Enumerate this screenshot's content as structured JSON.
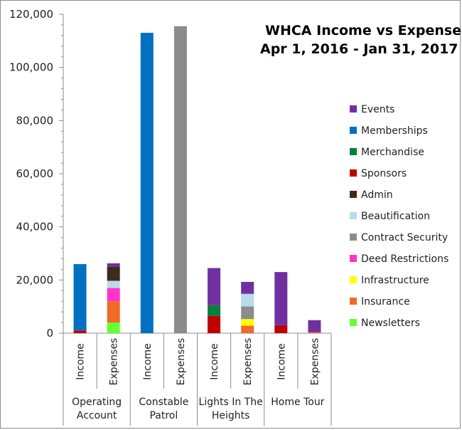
{
  "chart_data": {
    "type": "bar",
    "stacked": true,
    "title": [
      "WHCA Income vs Expenses",
      "Apr 1, 2016 - Jan 31, 2017"
    ],
    "xlabel": "",
    "ylabel": "",
    "ylim": [
      0,
      120000
    ],
    "yticks": [
      0,
      20000,
      40000,
      60000,
      80000,
      100000,
      120000
    ],
    "ytick_labels": [
      "0",
      "20,000",
      "40,000",
      "60,000",
      "80,000",
      "100,000",
      "120,000"
    ],
    "grid": false,
    "legend_position": "right",
    "groups": [
      {
        "label": [
          "Operating",
          "Account"
        ],
        "bars": [
          "Income",
          "Expenses"
        ]
      },
      {
        "label": [
          "Constable",
          "Patrol"
        ],
        "bars": [
          "Income",
          "Expenses"
        ]
      },
      {
        "label": [
          "Lights In The",
          "Heights"
        ],
        "bars": [
          "Income",
          "Expenses"
        ]
      },
      {
        "label": [
          "Home Tour"
        ],
        "bars": [
          "Income",
          "Expenses"
        ]
      }
    ],
    "categories": [
      "Operating Account Income",
      "Operating Account Expenses",
      "Constable Patrol Income",
      "Constable Patrol Expenses",
      "Lights In The Heights Income",
      "Lights In The Heights Expenses",
      "Home Tour Income",
      "Home Tour Expenses"
    ],
    "stack_order": [
      "Newsletters",
      "Insurance",
      "Infrastructure",
      "Deed Restrictions",
      "Contract Security",
      "Beautification",
      "Admin",
      "Sponsors",
      "Merchandise",
      "Memberships",
      "Events"
    ],
    "series": [
      {
        "name": "Events",
        "color": "#7030a0",
        "values": [
          0,
          1300,
          0,
          0,
          14000,
          4500,
          20000,
          4500
        ]
      },
      {
        "name": "Memberships",
        "color": "#0070c0",
        "values": [
          25000,
          0,
          113000,
          0,
          0,
          0,
          0,
          0
        ]
      },
      {
        "name": "Merchandise",
        "color": "#00803c",
        "values": [
          0,
          0,
          0,
          0,
          4000,
          0,
          0,
          0
        ]
      },
      {
        "name": "Sponsors",
        "color": "#c00000",
        "values": [
          1000,
          0,
          0,
          0,
          6500,
          0,
          3000,
          0
        ]
      },
      {
        "name": "Admin",
        "color": "#3d2b1f",
        "values": [
          0,
          5300,
          0,
          0,
          0,
          0,
          0,
          0
        ]
      },
      {
        "name": "Beautification",
        "color": "#b7dde8",
        "values": [
          0,
          2700,
          0,
          0,
          0,
          4700,
          0,
          0
        ]
      },
      {
        "name": "Contract Security",
        "color": "#8c8c8c",
        "values": [
          0,
          0,
          0,
          115500,
          0,
          4800,
          0,
          0
        ]
      },
      {
        "name": "Deed Restrictions",
        "color": "#ff33cc",
        "values": [
          0,
          5000,
          0,
          0,
          0,
          0,
          0,
          0
        ]
      },
      {
        "name": "Infrastructure",
        "color": "#ffff00",
        "values": [
          0,
          0,
          0,
          0,
          0,
          2500,
          0,
          0
        ]
      },
      {
        "name": "Insurance",
        "color": "#f06a28",
        "values": [
          0,
          8000,
          0,
          0,
          0,
          2800,
          0,
          400
        ]
      },
      {
        "name": "Newsletters",
        "color": "#66ff33",
        "values": [
          0,
          4000,
          0,
          0,
          0,
          0,
          0,
          0
        ]
      }
    ]
  }
}
